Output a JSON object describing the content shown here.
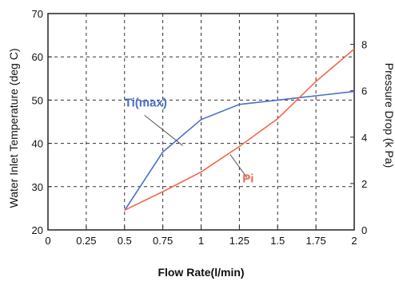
{
  "chart_data": {
    "type": "line",
    "xlabel": "Flow Rate(l/min)",
    "ylabel_left": "Water Inlet Temperature (deg C)",
    "ylabel_right": "Pressure Drop (k Pa)",
    "xlim": [
      0,
      2
    ],
    "ylim_left": [
      20,
      70
    ],
    "ylim_right": [
      0,
      9.33
    ],
    "x_ticks": [
      "0",
      "0.25",
      "0.5",
      "0.75",
      "1",
      "1.25",
      "1.5",
      "1.75",
      "2"
    ],
    "y_left_ticks": [
      "20",
      "30",
      "40",
      "50",
      "60",
      "70"
    ],
    "y_right_ticks": [
      "0",
      "2",
      "4",
      "6",
      "8"
    ],
    "grid": true,
    "series": [
      {
        "name": "Ti(max)",
        "axis": "left",
        "color": "#4a6fc9",
        "x": [
          0.5,
          0.75,
          1.0,
          1.25,
          1.5,
          1.75,
          2.0
        ],
        "y": [
          24.5,
          38,
          45.5,
          49,
          50,
          51,
          52
        ]
      },
      {
        "name": "Pi",
        "axis": "right",
        "color": "#f2684a",
        "x": [
          0.5,
          0.75,
          1.0,
          1.25,
          1.5,
          1.75,
          2.0
        ],
        "y": [
          0.85,
          1.65,
          2.5,
          3.6,
          4.8,
          6.4,
          7.8
        ]
      }
    ]
  }
}
